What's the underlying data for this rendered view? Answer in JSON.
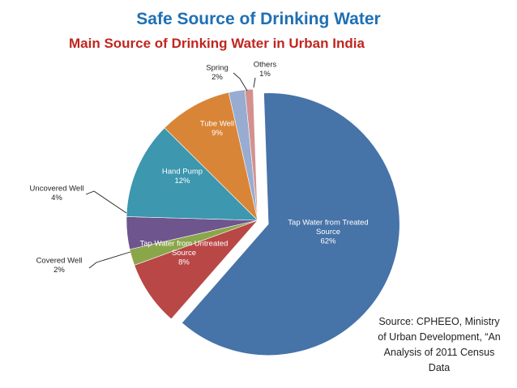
{
  "title": "Safe Source of Drinking Water",
  "source_note": "Source: CPHEEO, Ministry of Urban Development, “An Analysis of 2011 Census Data",
  "chart_data": {
    "type": "pie",
    "title": "Main Source of Drinking Water in Urban India",
    "slices": [
      {
        "label": "Tap Water from Treated Source",
        "value": 62,
        "pct_label": "62%",
        "color": "#4673a8",
        "label_lines": [
          "Tap Water from Treated",
          "Source",
          "62%"
        ],
        "exploded": true
      },
      {
        "label": "Tap Water from Untreated Source",
        "value": 8,
        "pct_label": "8%",
        "color": "#b94746",
        "label_lines": [
          "Tap Water from Untreated",
          "Source",
          "8%"
        ]
      },
      {
        "label": "Covered Well",
        "value": 2,
        "pct_label": "2%",
        "color": "#8aa64a",
        "label_lines": [
          "Covered Well",
          "2%"
        ]
      },
      {
        "label": "Uncovered Well",
        "value": 4,
        "pct_label": "4%",
        "color": "#6e558e",
        "label_lines": [
          "Uncovered Well",
          "4%"
        ]
      },
      {
        "label": "Hand Pump",
        "value": 12,
        "pct_label": "12%",
        "color": "#3c97af",
        "label_lines": [
          "Hand Pump",
          "12%"
        ]
      },
      {
        "label": "Tube Well",
        "value": 9,
        "pct_label": "9%",
        "color": "#d98537",
        "label_lines": [
          "Tube Well",
          "9%"
        ]
      },
      {
        "label": "Spring",
        "value": 2,
        "pct_label": "2%",
        "color": "#98acd1",
        "label_lines": [
          "Spring",
          "2%"
        ]
      },
      {
        "label": "Others",
        "value": 1,
        "pct_label": "1%",
        "color": "#d2918f",
        "label_lines": [
          "Others",
          "1%"
        ]
      }
    ]
  }
}
